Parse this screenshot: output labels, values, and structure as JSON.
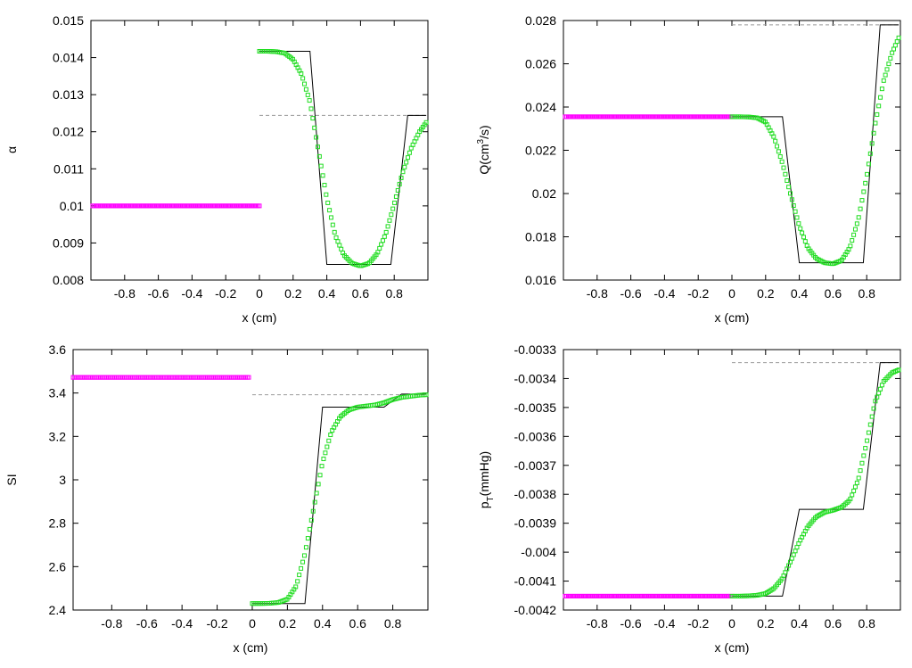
{
  "chart_data": [
    {
      "type": "line",
      "ylabel": "α",
      "xlabel": "x (cm)",
      "xlim": [
        -1,
        1
      ],
      "ylim": [
        0.008,
        0.015
      ],
      "xticks": [
        "-0.8",
        "-0.6",
        "-0.4",
        "-0.2",
        "0",
        "0.2",
        "0.4",
        "0.6",
        "0.8"
      ],
      "yticks": [
        "0.008",
        "0.009",
        "0.01",
        "0.011",
        "0.012",
        "0.013",
        "0.014",
        "0.015"
      ],
      "left_value": 0.01,
      "left_range": [
        -0.99,
        0.0
      ],
      "exact": {
        "x": [
          0.0,
          0.3,
          0.4,
          0.78,
          0.88,
          0.99
        ],
        "y": [
          0.01417,
          0.01417,
          0.00842,
          0.00842,
          0.01244,
          0.01244
        ]
      },
      "numerical": {
        "x": [
          0.0,
          0.05,
          0.1,
          0.15,
          0.2,
          0.25,
          0.3,
          0.35,
          0.4,
          0.45,
          0.5,
          0.55,
          0.6,
          0.65,
          0.7,
          0.75,
          0.8,
          0.85,
          0.9,
          0.95,
          0.99
        ],
        "y": [
          0.01417,
          0.01417,
          0.01416,
          0.01412,
          0.01395,
          0.01355,
          0.0128,
          0.0115,
          0.0102,
          0.0092,
          0.00868,
          0.00845,
          0.00838,
          0.00845,
          0.00872,
          0.00925,
          0.01005,
          0.0109,
          0.01155,
          0.012,
          0.01225
        ]
      },
      "reference": {
        "value": 0.01244,
        "range": [
          0.0,
          0.99
        ]
      }
    },
    {
      "type": "line",
      "ylabel": "Q(cm³/s)",
      "xlabel": "x (cm)",
      "xlim": [
        -1,
        1
      ],
      "ylim": [
        0.016,
        0.028
      ],
      "xticks": [
        "-0.8",
        "-0.6",
        "-0.4",
        "-0.2",
        "0",
        "0.2",
        "0.4",
        "0.6",
        "0.8"
      ],
      "yticks": [
        "0.016",
        "0.018",
        "0.02",
        "0.022",
        "0.024",
        "0.026",
        "0.028"
      ],
      "left_value": 0.02355,
      "left_range": [
        -0.99,
        0.0
      ],
      "exact": {
        "x": [
          0.0,
          0.3,
          0.4,
          0.78,
          0.88,
          0.99
        ],
        "y": [
          0.02355,
          0.02355,
          0.0168,
          0.0168,
          0.0278,
          0.0278
        ]
      },
      "numerical": {
        "x": [
          0.0,
          0.05,
          0.1,
          0.15,
          0.2,
          0.25,
          0.3,
          0.35,
          0.4,
          0.45,
          0.5,
          0.55,
          0.6,
          0.65,
          0.7,
          0.75,
          0.8,
          0.85,
          0.9,
          0.95,
          0.99
        ],
        "y": [
          0.02355,
          0.02355,
          0.02354,
          0.0235,
          0.0233,
          0.0226,
          0.0214,
          0.0199,
          0.0185,
          0.0175,
          0.017,
          0.0168,
          0.01675,
          0.0169,
          0.0175,
          0.0188,
          0.0208,
          0.0232,
          0.0252,
          0.0265,
          0.0272
        ]
      },
      "reference": {
        "value": 0.0278,
        "range": [
          0.0,
          0.99
        ]
      }
    },
    {
      "type": "line",
      "ylabel": "SI",
      "xlabel": "x (cm)",
      "xlim": [
        -1.02,
        1.0
      ],
      "ylim": [
        2.4,
        3.6
      ],
      "xticks": [
        "-0.8",
        "-0.6",
        "-0.4",
        "-0.2",
        "0",
        "0.2",
        "0.4",
        "0.6",
        "0.8"
      ],
      "yticks": [
        "2.4",
        "2.6",
        "2.8",
        "3",
        "3.2",
        "3.4",
        "3.6"
      ],
      "left_value": 3.472,
      "left_range": [
        -1.02,
        -0.02
      ],
      "exact": {
        "x": [
          0.0,
          0.3,
          0.4,
          0.58,
          0.75,
          0.85,
          0.99
        ],
        "y": [
          2.43,
          2.43,
          3.335,
          3.335,
          3.335,
          3.395,
          3.395
        ]
      },
      "numerical": {
        "x": [
          0.0,
          0.05,
          0.1,
          0.15,
          0.2,
          0.25,
          0.3,
          0.35,
          0.4,
          0.45,
          0.5,
          0.55,
          0.6,
          0.65,
          0.7,
          0.75,
          0.8,
          0.85,
          0.9,
          0.95,
          0.99
        ],
        "y": [
          2.43,
          2.43,
          2.431,
          2.435,
          2.45,
          2.51,
          2.66,
          2.87,
          3.08,
          3.22,
          3.29,
          3.322,
          3.335,
          3.34,
          3.345,
          3.355,
          3.37,
          3.38,
          3.385,
          3.39,
          3.392
        ]
      },
      "reference": {
        "value": 3.392,
        "range": [
          0.0,
          0.99
        ]
      }
    },
    {
      "type": "line",
      "ylabel": "pT(mmHg)",
      "xlabel": "x (cm)",
      "xlim": [
        -1,
        1
      ],
      "ylim": [
        -0.0042,
        -0.0033
      ],
      "xticks": [
        "-0.8",
        "-0.6",
        "-0.4",
        "-0.2",
        "0",
        "0.2",
        "0.4",
        "0.6",
        "0.8"
      ],
      "yticks": [
        "-0.0042",
        "-0.0041",
        "-0.004",
        "-0.0039",
        "-0.0038",
        "-0.0037",
        "-0.0036",
        "-0.0035",
        "-0.0034",
        "-0.0033"
      ],
      "left_value": -0.004152,
      "left_range": [
        -0.99,
        0.0
      ],
      "exact": {
        "x": [
          0.0,
          0.3,
          0.4,
          0.78,
          0.88,
          0.99
        ],
        "y": [
          -0.004152,
          -0.004152,
          -0.003852,
          -0.003852,
          -0.003345,
          -0.003345
        ]
      },
      "numerical": {
        "x": [
          0.0,
          0.05,
          0.1,
          0.15,
          0.2,
          0.25,
          0.3,
          0.35,
          0.4,
          0.45,
          0.5,
          0.55,
          0.6,
          0.65,
          0.7,
          0.75,
          0.8,
          0.85,
          0.9,
          0.95,
          0.99
        ],
        "y": [
          -0.004152,
          -0.004152,
          -0.004151,
          -0.004149,
          -0.004143,
          -0.004125,
          -0.00409,
          -0.00403,
          -0.003965,
          -0.003912,
          -0.003878,
          -0.003862,
          -0.003855,
          -0.003845,
          -0.00382,
          -0.00375,
          -0.00362,
          -0.00348,
          -0.00341,
          -0.00338,
          -0.00337
        ]
      },
      "reference": {
        "value": -0.003345,
        "range": [
          0.0,
          0.99
        ]
      }
    }
  ]
}
